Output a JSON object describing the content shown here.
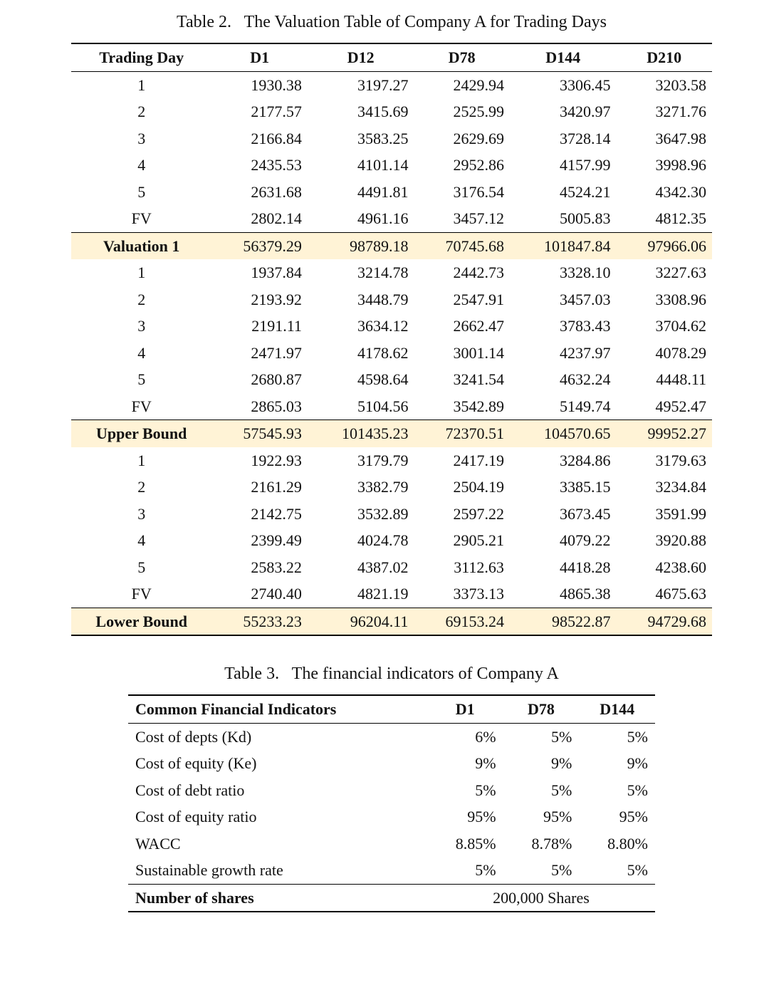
{
  "colors": {
    "text": "#111111",
    "background": "#ffffff",
    "highlight_row": "#fff3d6",
    "rule": "#000000"
  },
  "typography": {
    "body_font": "Georgia / Times",
    "body_size_pt": 16,
    "caption_size_pt": 17,
    "header_weight": "bold"
  },
  "table2": {
    "caption_prefix": "Table 2.",
    "caption": "The Valuation Table of Company A for Trading Days",
    "columns": [
      "Trading Day",
      "D1",
      "D12",
      "D78",
      "D144",
      "D210"
    ],
    "groups": [
      {
        "label": "Valuation 1",
        "rows": [
          {
            "label": "1",
            "values": [
              "1930.38",
              "3197.27",
              "2429.94",
              "3306.45",
              "3203.58"
            ]
          },
          {
            "label": "2",
            "values": [
              "2177.57",
              "3415.69",
              "2525.99",
              "3420.97",
              "3271.76"
            ]
          },
          {
            "label": "3",
            "values": [
              "2166.84",
              "3583.25",
              "2629.69",
              "3728.14",
              "3647.98"
            ]
          },
          {
            "label": "4",
            "values": [
              "2435.53",
              "4101.14",
              "2952.86",
              "4157.99",
              "3998.96"
            ]
          },
          {
            "label": "5",
            "values": [
              "2631.68",
              "4491.81",
              "3176.54",
              "4524.21",
              "4342.30"
            ]
          },
          {
            "label": "FV",
            "values": [
              "2802.14",
              "4961.16",
              "3457.12",
              "5005.83",
              "4812.35"
            ]
          }
        ],
        "summary": [
          "56379.29",
          "98789.18",
          "70745.68",
          "101847.84",
          "97966.06"
        ]
      },
      {
        "label": "Upper Bound",
        "rows": [
          {
            "label": "1",
            "values": [
              "1937.84",
              "3214.78",
              "2442.73",
              "3328.10",
              "3227.63"
            ]
          },
          {
            "label": "2",
            "values": [
              "2193.92",
              "3448.79",
              "2547.91",
              "3457.03",
              "3308.96"
            ]
          },
          {
            "label": "3",
            "values": [
              "2191.11",
              "3634.12",
              "2662.47",
              "3783.43",
              "3704.62"
            ]
          },
          {
            "label": "4",
            "values": [
              "2471.97",
              "4178.62",
              "3001.14",
              "4237.97",
              "4078.29"
            ]
          },
          {
            "label": "5",
            "values": [
              "2680.87",
              "4598.64",
              "3241.54",
              "4632.24",
              "4448.11"
            ]
          },
          {
            "label": "FV",
            "values": [
              "2865.03",
              "5104.56",
              "3542.89",
              "5149.74",
              "4952.47"
            ]
          }
        ],
        "summary": [
          "57545.93",
          "101435.23",
          "72370.51",
          "104570.65",
          "99952.27"
        ]
      },
      {
        "label": "Lower Bound",
        "rows": [
          {
            "label": "1",
            "values": [
              "1922.93",
              "3179.79",
              "2417.19",
              "3284.86",
              "3179.63"
            ]
          },
          {
            "label": "2",
            "values": [
              "2161.29",
              "3382.79",
              "2504.19",
              "3385.15",
              "3234.84"
            ]
          },
          {
            "label": "3",
            "values": [
              "2142.75",
              "3532.89",
              "2597.22",
              "3673.45",
              "3591.99"
            ]
          },
          {
            "label": "4",
            "values": [
              "2399.49",
              "4024.78",
              "2905.21",
              "4079.22",
              "3920.88"
            ]
          },
          {
            "label": "5",
            "values": [
              "2583.22",
              "4387.02",
              "3112.63",
              "4418.28",
              "4238.60"
            ]
          },
          {
            "label": "FV",
            "values": [
              "2740.40",
              "4821.19",
              "3373.13",
              "4865.38",
              "4675.63"
            ]
          }
        ],
        "summary": [
          "55233.23",
          "96204.11",
          "69153.24",
          "98522.87",
          "94729.68"
        ]
      }
    ]
  },
  "table3": {
    "caption_prefix": "Table 3.",
    "caption": "The financial indicators of Company A",
    "columns": [
      "Common Financial Indicators",
      "D1",
      "D78",
      "D144"
    ],
    "rows": [
      {
        "label": "Cost of depts (Kd)",
        "values": [
          "6%",
          "5%",
          "5%"
        ]
      },
      {
        "label": "Cost of equity (Ke)",
        "values": [
          "9%",
          "9%",
          "9%"
        ]
      },
      {
        "label": "Cost of debt ratio",
        "values": [
          "5%",
          "5%",
          "5%"
        ]
      },
      {
        "label": "Cost of equity ratio",
        "values": [
          "95%",
          "95%",
          "95%"
        ]
      },
      {
        "label": "WACC",
        "values": [
          "8.85%",
          "8.78%",
          "8.80%"
        ]
      },
      {
        "label": "Sustainable growth rate",
        "values": [
          "5%",
          "5%",
          "5%"
        ]
      }
    ],
    "footer": {
      "label": "Number of shares",
      "value": "200,000 Shares"
    }
  }
}
